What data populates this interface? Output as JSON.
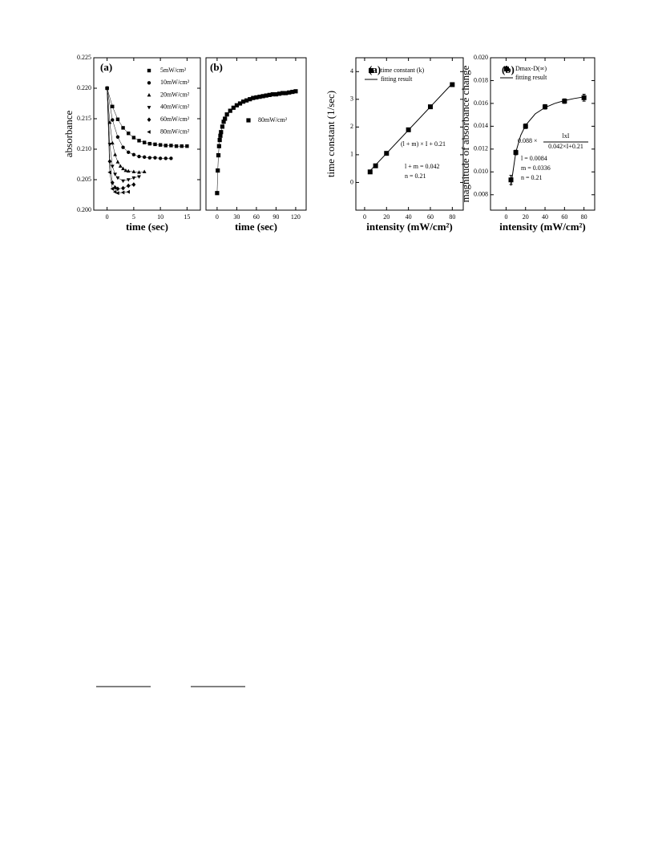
{
  "chart_data": [
    {
      "type": "scatter",
      "label": "(a)",
      "xlabel": "time (sec)",
      "ylabel": "absorbance",
      "xlim": [
        -2.5,
        17.5
      ],
      "xticks": [
        0,
        5,
        10,
        15
      ],
      "ylim": [
        0.2,
        0.225
      ],
      "yticks": [
        {
          "value": 0.2,
          "label": "0.200"
        },
        {
          "value": 0.205,
          "label": "0.205"
        },
        {
          "value": 0.21,
          "label": "0.210"
        },
        {
          "value": 0.215,
          "label": "0.215"
        },
        {
          "value": 0.22,
          "label": "0.220"
        },
        {
          "value": 0.225,
          "label": "0.225"
        }
      ],
      "series": [
        {
          "name": "5mW/cm²",
          "marker": "square",
          "color": "#000000",
          "line": true,
          "x": [
            0,
            1,
            2,
            3,
            4,
            5,
            6,
            7,
            8,
            9,
            10,
            11,
            12,
            13,
            14,
            15
          ],
          "values": [
            0.22,
            0.217,
            0.2149,
            0.2135,
            0.2126,
            0.2119,
            0.2114,
            0.2111,
            0.2109,
            0.2108,
            0.2107,
            0.2106,
            0.2106,
            0.2105,
            0.2105,
            0.2105
          ]
        },
        {
          "name": "10mW/cm²",
          "marker": "circle",
          "color": "#000000",
          "line": true,
          "x": [
            0,
            1,
            2,
            3,
            4,
            5,
            6,
            7,
            8,
            9,
            10,
            11,
            12
          ],
          "values": [
            0.22,
            0.2148,
            0.212,
            0.2103,
            0.2095,
            0.2091,
            0.2088,
            0.2087,
            0.2086,
            0.2086,
            0.2085,
            0.2085,
            0.2085
          ]
        },
        {
          "name": "20mW/cm²",
          "marker": "triangle-up",
          "color": "#000000",
          "line": true,
          "x": [
            0,
            0.5,
            1,
            1.5,
            2,
            2.5,
            3,
            3.5,
            4,
            5,
            6,
            7
          ],
          "values": [
            0.22,
            0.2144,
            0.211,
            0.2091,
            0.2079,
            0.2072,
            0.2068,
            0.2065,
            0.2064,
            0.2063,
            0.2062,
            0.2063
          ]
        },
        {
          "name": "40mW/cm²",
          "marker": "triangle-down",
          "color": "#000000",
          "line": true,
          "x": [
            0,
            0.5,
            1,
            1.5,
            2,
            3,
            4,
            5,
            6
          ],
          "values": [
            0.22,
            0.2108,
            0.2072,
            0.2059,
            0.2053,
            0.2048,
            0.205,
            0.2053,
            0.2055
          ]
        },
        {
          "name": "60mW/cm²",
          "marker": "diamond",
          "color": "#000000",
          "line": true,
          "x": [
            0,
            0.5,
            1,
            1.5,
            2,
            3,
            4,
            5
          ],
          "values": [
            0.22,
            0.208,
            0.2045,
            0.2037,
            0.2035,
            0.2036,
            0.204,
            0.2042
          ]
        },
        {
          "name": "80mW/cm²",
          "marker": "triangle-left",
          "color": "#000000",
          "line": true,
          "x": [
            0,
            0.5,
            1,
            1.5,
            2,
            3,
            4
          ],
          "values": [
            0.22,
            0.2062,
            0.2035,
            0.203,
            0.2028,
            0.2029,
            0.203
          ]
        }
      ]
    },
    {
      "type": "scatter",
      "label": "(b)",
      "xlabel": "time (sec)",
      "xlim": [
        -17,
        136
      ],
      "xticks": [
        0,
        30,
        60,
        90,
        120
      ],
      "ylim": [
        0.2,
        0.225
      ],
      "series": [
        {
          "name": "80mW/cm²",
          "marker": "square",
          "color": "#000000",
          "line": true,
          "x": [
            0,
            1,
            2,
            3,
            4,
            5,
            6,
            8,
            10,
            12,
            15,
            20,
            25,
            30,
            35,
            40,
            45,
            50,
            55,
            60,
            65,
            70,
            75,
            80,
            85,
            90,
            95,
            100,
            105,
            110,
            115,
            120
          ],
          "values": [
            0.2028,
            0.2065,
            0.209,
            0.2105,
            0.2115,
            0.2122,
            0.2128,
            0.2137,
            0.2145,
            0.215,
            0.2157,
            0.2163,
            0.2168,
            0.2172,
            0.2175,
            0.2178,
            0.218,
            0.2182,
            0.2184,
            0.2185,
            0.2186,
            0.2187,
            0.2188,
            0.2189,
            0.219,
            0.219,
            0.2191,
            0.2192,
            0.2192,
            0.2193,
            0.2194,
            0.2195
          ]
        }
      ]
    },
    {
      "type": "scatter",
      "label": "(a)",
      "xlabel": "intensity (mW/cm²)",
      "ylabel": "time constant (1/sec)",
      "xlim": [
        -8,
        90
      ],
      "xticks": [
        0,
        20,
        40,
        60,
        80
      ],
      "ylim": [
        -1,
        4.5
      ],
      "yticks": [
        0,
        1,
        2,
        3,
        4
      ],
      "series": [
        {
          "name": "time constant (k)",
          "marker": "square",
          "color": "#000000",
          "x": [
            5,
            10,
            20,
            40,
            60,
            80
          ],
          "values": [
            0.38,
            0.6,
            1.05,
            1.9,
            2.73,
            3.53
          ]
        },
        {
          "name": "fitting result",
          "line": true,
          "color": "#000000",
          "x": [
            5,
            80
          ],
          "values": [
            0.42,
            3.57
          ]
        }
      ],
      "annotations": [
        "(l + m) × I + 0.21",
        "l + m = 0.042",
        "n = 0.21"
      ]
    },
    {
      "type": "scatter",
      "label": "(b)",
      "xlabel": "intensity (mW/cm²)",
      "ylabel": "magnitude of absorbance change",
      "xlim": [
        -16,
        91
      ],
      "xticks": [
        0,
        20,
        40,
        60,
        80
      ],
      "ylim": [
        0.00665,
        0.02
      ],
      "yticks": [
        {
          "value": 0.008,
          "label": "0.008"
        },
        {
          "value": 0.01,
          "label": "0.010"
        },
        {
          "value": 0.012,
          "label": "0.012"
        },
        {
          "value": 0.014,
          "label": "0.014"
        },
        {
          "value": 0.016,
          "label": "0.016"
        },
        {
          "value": 0.018,
          "label": "0.018"
        },
        {
          "value": 0.02,
          "label": "0.020"
        }
      ],
      "series": [
        {
          "name": "Dmax-D(∞)",
          "marker": "square",
          "color": "#000000",
          "x": [
            5,
            10,
            20,
            40,
            60,
            80
          ],
          "values": [
            0.0093,
            0.0117,
            0.014,
            0.0157,
            0.0162,
            0.0165
          ],
          "errors": [
            0.0004,
            0.0002,
            0.0002,
            0.0002,
            0.0002,
            0.0003
          ]
        },
        {
          "name": "fitting result",
          "line": true,
          "color": "#000000",
          "x": [
            5,
            10,
            15,
            20,
            30,
            40,
            50,
            60,
            70,
            80
          ],
          "values": [
            0.0088,
            0.01173,
            0.0132,
            0.01408,
            0.01509,
            0.01564,
            0.016,
            0.01625,
            0.01643,
            0.01657
          ]
        }
      ],
      "annotations": [
        "0.088 ×",
        "lxI",
        "0.042×I+0.21",
        "l = 0.0084",
        "m = 0.0336",
        "n = 0.21"
      ]
    }
  ]
}
